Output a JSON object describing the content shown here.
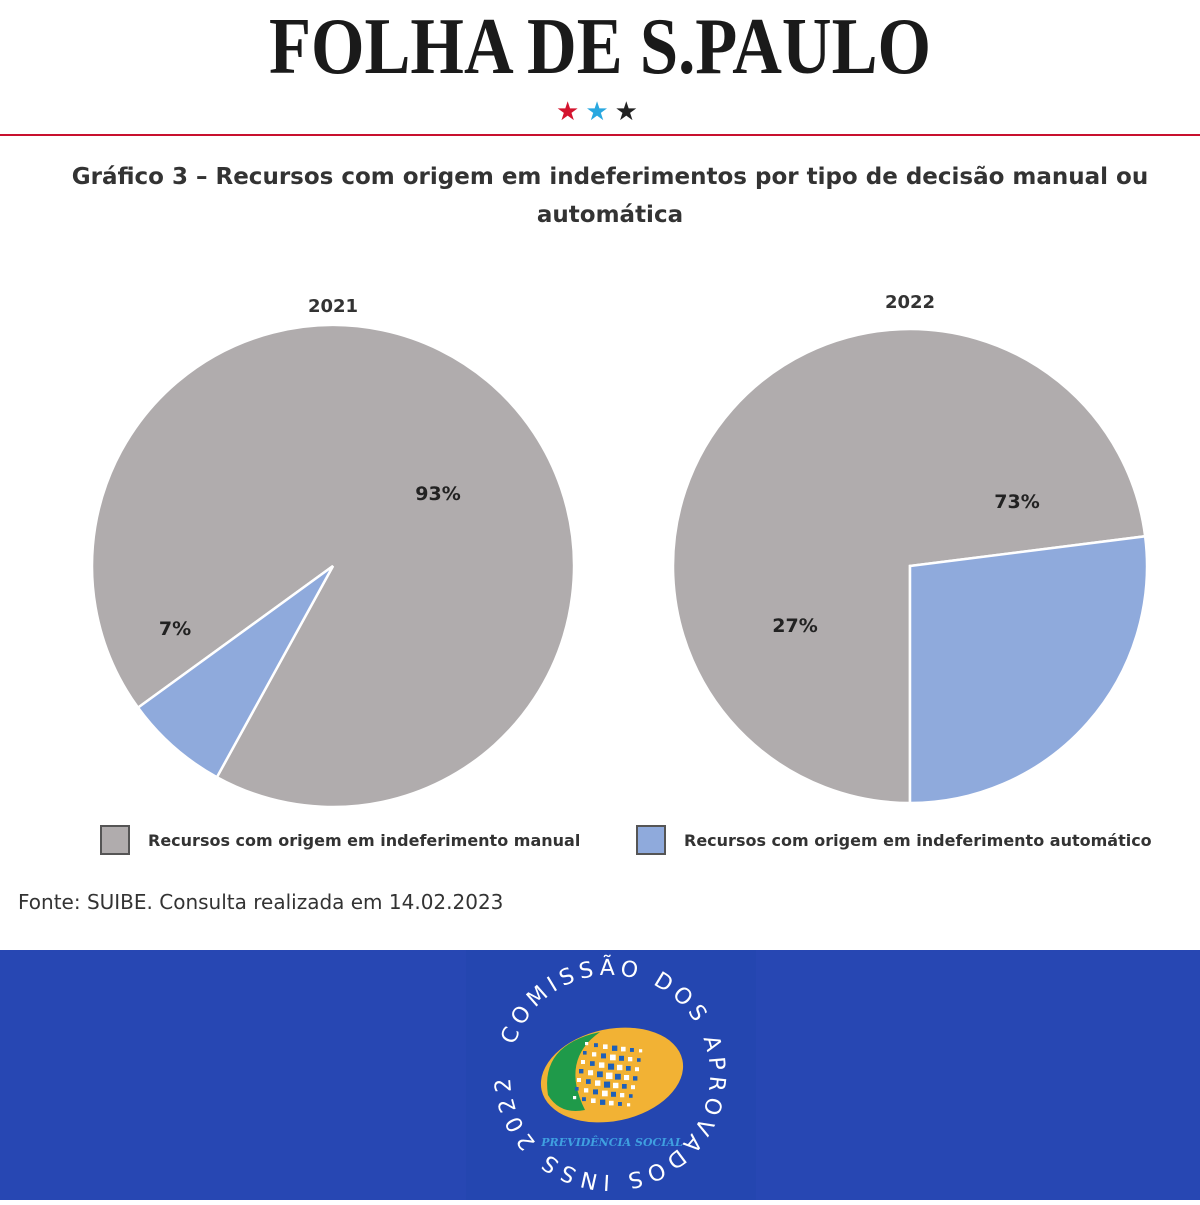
{
  "masthead": {
    "title": "FOLHA DE S.PAULO",
    "stars": [
      "★",
      "★",
      "★"
    ],
    "star_colors": [
      "#d4142e",
      "#29a8e0",
      "#222222"
    ]
  },
  "chart_title": "Gráfico 3 – Recursos com origem em indeferimentos por tipo de decisão manual ou automática",
  "chart_data": [
    {
      "type": "pie",
      "title": "2021",
      "categories": [
        "Recursos com origem em indeferimento manual",
        "Recursos com origem em indeferimento automático"
      ],
      "values": [
        93,
        7
      ],
      "labels": [
        "93%",
        "7%"
      ],
      "colors": [
        "#b0acad",
        "#8faadc"
      ]
    },
    {
      "type": "pie",
      "title": "2022",
      "categories": [
        "Recursos com origem em indeferimento manual",
        "Recursos com origem em indeferimento automático"
      ],
      "values": [
        73,
        27
      ],
      "labels": [
        "73%",
        "27%"
      ],
      "colors": [
        "#b0acad",
        "#8faadc"
      ]
    }
  ],
  "legend": {
    "manual": {
      "label": "Recursos com origem em indeferimento manual",
      "color": "#b0acad"
    },
    "automatic": {
      "label": "Recursos com origem em indeferimento automático",
      "color": "#8faadc"
    }
  },
  "source": "Fonte: SUIBE. Consulta realizada em 14.02.2023",
  "footer": {
    "background": "#2747b3",
    "badge_ring_text": "COMISSÃO DOS APROVADOS INSS 2022",
    "logo_text": "PREVIDÊNCIA SOCIAL"
  }
}
